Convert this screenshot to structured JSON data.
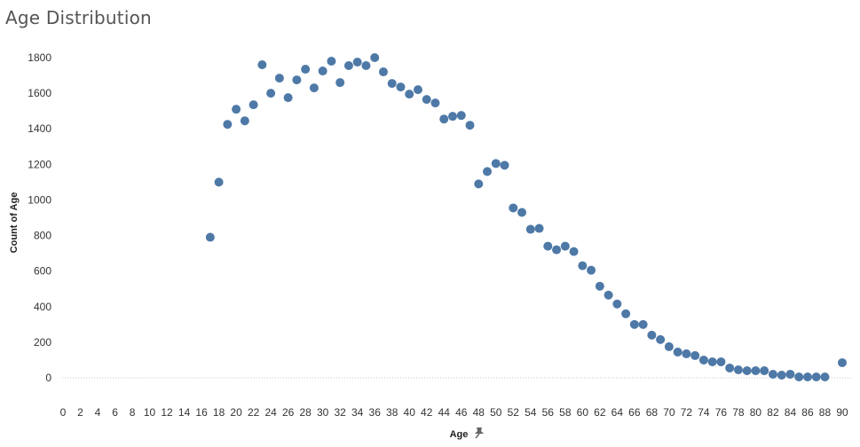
{
  "title": "Age Distribution",
  "colors": {
    "point": "#4e79a7",
    "zero_line": "#c8c8c8",
    "title": "#555555"
  },
  "icons": {
    "xlabel_icon": "pin-icon"
  },
  "chart_data": {
    "type": "scatter",
    "title": "Age Distribution",
    "xlabel": "Age",
    "ylabel": "Count of Age",
    "xlim": [
      0,
      90
    ],
    "ylim": [
      -140,
      1900
    ],
    "xticks": [
      0,
      2,
      4,
      6,
      8,
      10,
      12,
      14,
      16,
      18,
      20,
      22,
      24,
      26,
      28,
      30,
      32,
      34,
      36,
      38,
      40,
      42,
      44,
      46,
      48,
      50,
      52,
      54,
      56,
      58,
      60,
      62,
      64,
      66,
      68,
      70,
      72,
      74,
      76,
      78,
      80,
      82,
      84,
      86,
      88,
      90
    ],
    "yticks": [
      0,
      200,
      400,
      600,
      800,
      1000,
      1200,
      1400,
      1600,
      1800
    ],
    "grid": false,
    "legend": "none",
    "points": [
      {
        "x": 17,
        "y": 790
      },
      {
        "x": 18,
        "y": 1100
      },
      {
        "x": 19,
        "y": 1425
      },
      {
        "x": 20,
        "y": 1510
      },
      {
        "x": 21,
        "y": 1445
      },
      {
        "x": 22,
        "y": 1535
      },
      {
        "x": 23,
        "y": 1760
      },
      {
        "x": 24,
        "y": 1600
      },
      {
        "x": 25,
        "y": 1685
      },
      {
        "x": 26,
        "y": 1575
      },
      {
        "x": 27,
        "y": 1675
      },
      {
        "x": 28,
        "y": 1735
      },
      {
        "x": 29,
        "y": 1630
      },
      {
        "x": 30,
        "y": 1725
      },
      {
        "x": 31,
        "y": 1780
      },
      {
        "x": 32,
        "y": 1660
      },
      {
        "x": 33,
        "y": 1755
      },
      {
        "x": 34,
        "y": 1775
      },
      {
        "x": 35,
        "y": 1755
      },
      {
        "x": 36,
        "y": 1800
      },
      {
        "x": 37,
        "y": 1720
      },
      {
        "x": 38,
        "y": 1655
      },
      {
        "x": 39,
        "y": 1635
      },
      {
        "x": 40,
        "y": 1595
      },
      {
        "x": 41,
        "y": 1620
      },
      {
        "x": 42,
        "y": 1565
      },
      {
        "x": 43,
        "y": 1545
      },
      {
        "x": 44,
        "y": 1455
      },
      {
        "x": 45,
        "y": 1470
      },
      {
        "x": 46,
        "y": 1475
      },
      {
        "x": 47,
        "y": 1420
      },
      {
        "x": 48,
        "y": 1090
      },
      {
        "x": 49,
        "y": 1160
      },
      {
        "x": 50,
        "y": 1205
      },
      {
        "x": 51,
        "y": 1195
      },
      {
        "x": 52,
        "y": 955
      },
      {
        "x": 53,
        "y": 930
      },
      {
        "x": 54,
        "y": 835
      },
      {
        "x": 55,
        "y": 840
      },
      {
        "x": 56,
        "y": 740
      },
      {
        "x": 57,
        "y": 720
      },
      {
        "x": 58,
        "y": 740
      },
      {
        "x": 59,
        "y": 710
      },
      {
        "x": 60,
        "y": 630
      },
      {
        "x": 61,
        "y": 605
      },
      {
        "x": 62,
        "y": 515
      },
      {
        "x": 63,
        "y": 465
      },
      {
        "x": 64,
        "y": 415
      },
      {
        "x": 65,
        "y": 360
      },
      {
        "x": 66,
        "y": 300
      },
      {
        "x": 67,
        "y": 300
      },
      {
        "x": 68,
        "y": 240
      },
      {
        "x": 69,
        "y": 215
      },
      {
        "x": 70,
        "y": 175
      },
      {
        "x": 71,
        "y": 145
      },
      {
        "x": 72,
        "y": 135
      },
      {
        "x": 73,
        "y": 125
      },
      {
        "x": 74,
        "y": 100
      },
      {
        "x": 75,
        "y": 90
      },
      {
        "x": 76,
        "y": 90
      },
      {
        "x": 77,
        "y": 55
      },
      {
        "x": 78,
        "y": 45
      },
      {
        "x": 79,
        "y": 40
      },
      {
        "x": 80,
        "y": 40
      },
      {
        "x": 81,
        "y": 40
      },
      {
        "x": 82,
        "y": 20
      },
      {
        "x": 83,
        "y": 15
      },
      {
        "x": 84,
        "y": 20
      },
      {
        "x": 85,
        "y": 5
      },
      {
        "x": 86,
        "y": 5
      },
      {
        "x": 87,
        "y": 5
      },
      {
        "x": 88,
        "y": 5
      },
      {
        "x": 90,
        "y": 85
      }
    ]
  }
}
